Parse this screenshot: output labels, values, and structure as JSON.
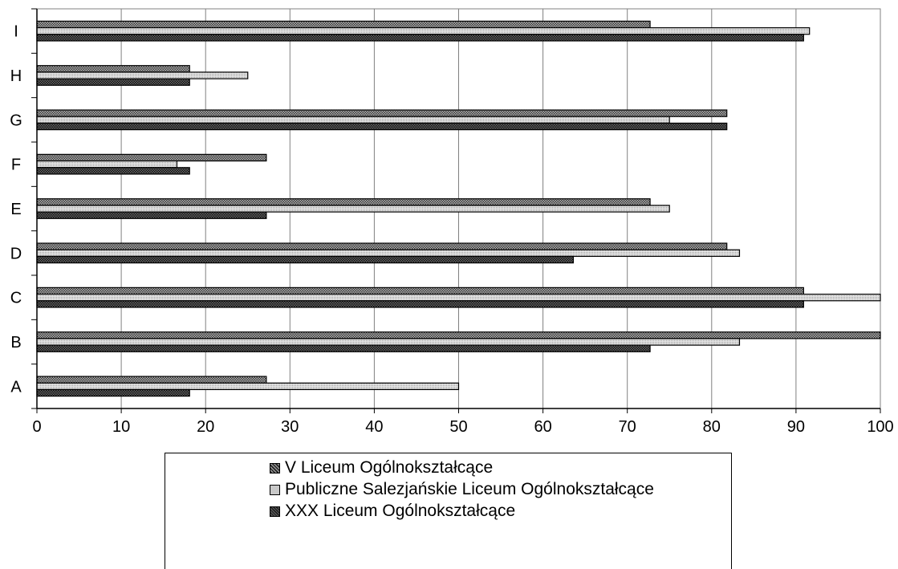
{
  "colors": {
    "series_0": "#8c8c8c",
    "series_1": "#d0d0d0",
    "series_2": "#3a3a3a"
  },
  "chart_data": {
    "type": "bar",
    "orientation": "horizontal",
    "categories": [
      "A",
      "B",
      "C",
      "D",
      "E",
      "F",
      "G",
      "H",
      "I"
    ],
    "series": [
      {
        "name": "V Liceum Ogólnokształcące",
        "values": [
          27.2,
          100,
          90.9,
          81.8,
          72.7,
          27.2,
          81.8,
          18.1,
          72.7
        ]
      },
      {
        "name": "Publiczne Salezjańskie Liceum Ogólnokształcące",
        "values": [
          50,
          83.3,
          100,
          83.3,
          75,
          16.6,
          75,
          25,
          91.6
        ]
      },
      {
        "name": "XXX Liceum Ogólnokształcące",
        "values": [
          18.1,
          72.7,
          90.9,
          63.6,
          27.2,
          18.1,
          81.8,
          18.1,
          90.9
        ]
      }
    ],
    "xlabel": "%",
    "ylabel": "",
    "xlim": [
      0,
      100
    ],
    "xticks": [
      "0",
      "10",
      "20",
      "30",
      "40",
      "50",
      "60",
      "70",
      "80",
      "90",
      "100"
    ],
    "grid": "vertical",
    "legend_position": "bottom"
  }
}
